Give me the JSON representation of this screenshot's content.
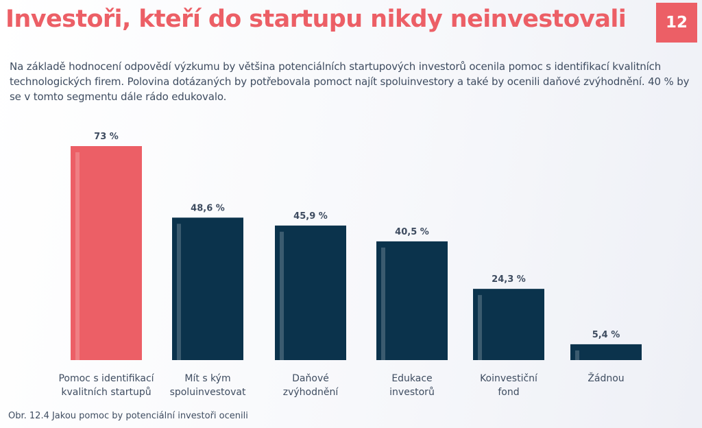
{
  "header": {
    "title": "Investoři, kteří do startupu nikdy neinvestovali",
    "page_number": "12"
  },
  "intro_text": "Na základě hodnocení odpovědí výzkumu by většina potenciálních startupových investorů ocenila pomoc s identifikací kvalitních technologických firem. Polovina dotázaných by potřebovala pomoct najít spoluinvestory a také by ocenili daňové zvýhodnění. 40 % by se v tomto segmentu dále rádo edukovalo.",
  "caption": "Obr. 12.4 Jakou pomoc by potenciální investoři ocenili",
  "colors": {
    "accent": "#ec5f66",
    "bar_default": "#0b334c",
    "text": "#3e4c60"
  },
  "chart_data": {
    "type": "bar",
    "categories": [
      [
        "Pomoc s identifikací",
        "kvalitních startupů"
      ],
      [
        "Mít s kým",
        "spoluinvestovat"
      ],
      [
        "Daňové",
        "zvýhodnění"
      ],
      [
        "Edukace",
        "investorů"
      ],
      [
        "Koinvestiční",
        "fond"
      ],
      [
        "Žádnou"
      ]
    ],
    "values": [
      73,
      48.6,
      45.9,
      40.5,
      24.3,
      5.4
    ],
    "value_labels": [
      "73 %",
      "48,6 %",
      "45,9 %",
      "40,5 %",
      "24,3 %",
      "5,4 %"
    ],
    "highlight_index": 0,
    "ylim": [
      0,
      73
    ],
    "grid": false,
    "legend": "none"
  }
}
